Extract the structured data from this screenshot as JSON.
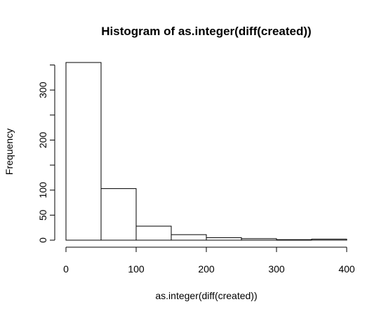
{
  "chart_data": {
    "type": "bar",
    "subtype": "histogram",
    "title": "Histogram of as.integer(diff(created))",
    "xlabel": "as.integer(diff(created))",
    "ylabel": "Frequency",
    "bins": [
      {
        "start": 0,
        "end": 50,
        "count": 355
      },
      {
        "start": 50,
        "end": 100,
        "count": 103
      },
      {
        "start": 100,
        "end": 150,
        "count": 28
      },
      {
        "start": 150,
        "end": 200,
        "count": 11
      },
      {
        "start": 200,
        "end": 250,
        "count": 5
      },
      {
        "start": 250,
        "end": 300,
        "count": 3
      },
      {
        "start": 300,
        "end": 350,
        "count": 1
      },
      {
        "start": 350,
        "end": 400,
        "count": 2
      }
    ],
    "xlim": [
      0,
      400
    ],
    "ylim": [
      0,
      355
    ],
    "x_ticks": [
      0,
      100,
      200,
      300,
      400
    ],
    "y_ticks": [
      0,
      50,
      100,
      150,
      200,
      250,
      300,
      350
    ],
    "y_tick_labels": [
      "0",
      "50",
      "100",
      "",
      "200",
      "",
      "300",
      ""
    ],
    "grid": false,
    "bar_fill": "#ffffff",
    "bar_stroke": "#000000"
  }
}
